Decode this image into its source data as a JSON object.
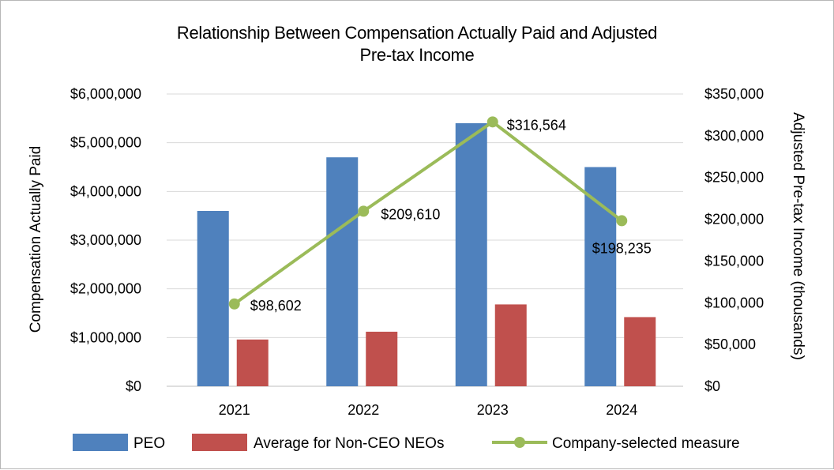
{
  "chart_data": {
    "type": "bar+line",
    "title_lines": [
      "Relationship Between Compensation Actually Paid and Adjusted",
      "Pre-tax Income"
    ],
    "categories": [
      "2021",
      "2022",
      "2023",
      "2024"
    ],
    "series": [
      {
        "name": "PEO",
        "type": "bar",
        "axis": "left",
        "color": "#4f81bd",
        "values": [
          3600000,
          4700000,
          5400000,
          4500000
        ]
      },
      {
        "name": "Average for Non-CEO NEOs",
        "type": "bar",
        "axis": "left",
        "color": "#c0504d",
        "values": [
          960000,
          1120000,
          1680000,
          1420000
        ]
      },
      {
        "name": "Company-selected measure",
        "type": "line",
        "axis": "right",
        "color": "#9bbb59",
        "values": [
          98602,
          209610,
          316564,
          198235
        ],
        "data_labels": [
          "$98,602",
          "$209,610",
          "$316,564",
          "$198,235"
        ]
      }
    ],
    "y_left": {
      "label": "Compensation Actually Paid",
      "range": [
        0,
        6000000
      ],
      "ticks": [
        0,
        1000000,
        2000000,
        3000000,
        4000000,
        5000000,
        6000000
      ],
      "tick_labels": [
        "$0",
        "$1,000,000",
        "$2,000,000",
        "$3,000,000",
        "$4,000,000",
        "$5,000,000",
        "$6,000,000"
      ]
    },
    "y_right": {
      "label": "Adjusted Pre-tax Income (thousands)",
      "range": [
        0,
        350000
      ],
      "ticks": [
        0,
        50000,
        100000,
        150000,
        200000,
        250000,
        300000,
        350000
      ],
      "tick_labels": [
        "$0",
        "$50,000",
        "$100,000",
        "$150,000",
        "$200,000",
        "$250,000",
        "$300,000",
        "$350,000"
      ]
    },
    "grid": true,
    "legend_position": "bottom"
  }
}
